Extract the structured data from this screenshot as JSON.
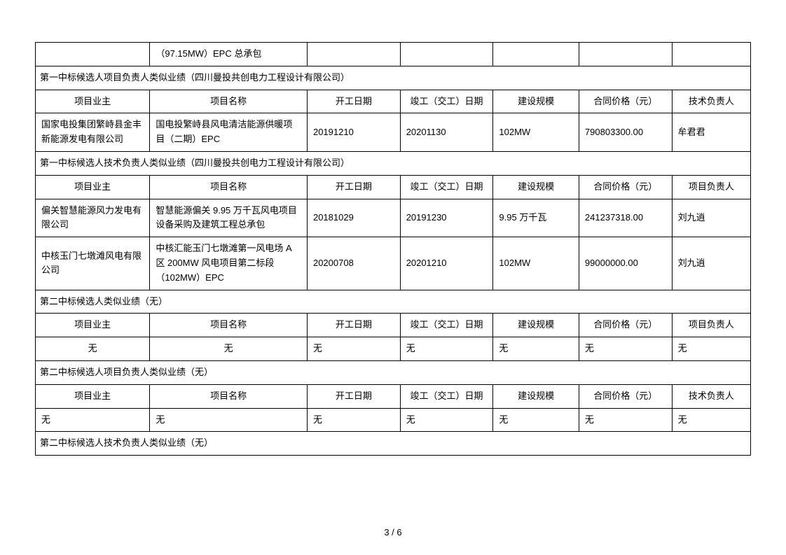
{
  "topRow": {
    "cell2": "（97.15MW）EPC 总承包"
  },
  "section1": {
    "title": "第一中标候选人项目负责人类似业绩（四川曼投共创电力工程设计有限公司）",
    "header": {
      "c1": "项目业主",
      "c2": "项目名称",
      "c3": "开工日期",
      "c4": "竣工（交工）日期",
      "c5": "建设规模",
      "c6": "合同价格（元）",
      "c7": "技术负责人"
    },
    "rows": [
      {
        "c1": "国家电投集团繁峙县金丰新能源发电有限公司",
        "c2": "国电投繁峙县风电清洁能源供暖项目（二期）EPC",
        "c3": "20191210",
        "c4": "20201130",
        "c5": "102MW",
        "c6": "790803300.00",
        "c7": "牟君君"
      }
    ]
  },
  "section2": {
    "title": "第一中标候选人技术负责人类似业绩（四川曼投共创电力工程设计有限公司）",
    "header": {
      "c1": "项目业主",
      "c2": "项目名称",
      "c3": "开工日期",
      "c4": "竣工（交工）日期",
      "c5": "建设规模",
      "c6": "合同价格（元）",
      "c7": "项目负责人"
    },
    "rows": [
      {
        "c1": "偏关智慧能源风力发电有限公司",
        "c2": "智慧能源偏关 9.95 万千瓦风电项目设备采购及建筑工程总承包",
        "c3": "20181029",
        "c4": "20191230",
        "c5": "9.95 万千瓦",
        "c6": "241237318.00",
        "c7": "刘九逍"
      },
      {
        "c1": "中核玉门七墩滩风电有限公司",
        "c2": "中核汇能玉门七墩滩第一风电场 A 区 200MW 风电项目第二标段（102MW）EPC",
        "c3": "20200708",
        "c4": "20201210",
        "c5": "102MW",
        "c6": "99000000.00",
        "c7": "刘九逍"
      }
    ]
  },
  "section3": {
    "title": "第二中标候选人类似业绩（无）",
    "header": {
      "c1": "项目业主",
      "c2": "项目名称",
      "c3": "开工日期",
      "c4": "竣工（交工）日期",
      "c5": "建设规模",
      "c6": "合同价格（元）",
      "c7": "项目负责人"
    },
    "rows": [
      {
        "c1": "无",
        "c2": "无",
        "c3": "无",
        "c4": "无",
        "c5": "无",
        "c6": "无",
        "c7": "无"
      }
    ]
  },
  "section4": {
    "title": "第二中标候选人项目负责人类似业绩（无）",
    "header": {
      "c1": "项目业主",
      "c2": "项目名称",
      "c3": "开工日期",
      "c4": "竣工（交工）日期",
      "c5": "建设规模",
      "c6": "合同价格（元）",
      "c7": "技术负责人"
    },
    "rows": [
      {
        "c1": "无",
        "c2": "无",
        "c3": "无",
        "c4": "无",
        "c5": "无",
        "c6": "无",
        "c7": "无"
      }
    ]
  },
  "section5": {
    "title": "第二中标候选人技术负责人类似业绩（无）"
  },
  "footer": "3 / 6",
  "style": {
    "border_color": "#000000",
    "background_color": "#ffffff",
    "text_color": "#000000",
    "font_size": 13,
    "header_align": "center",
    "cell_align_left": "left"
  }
}
